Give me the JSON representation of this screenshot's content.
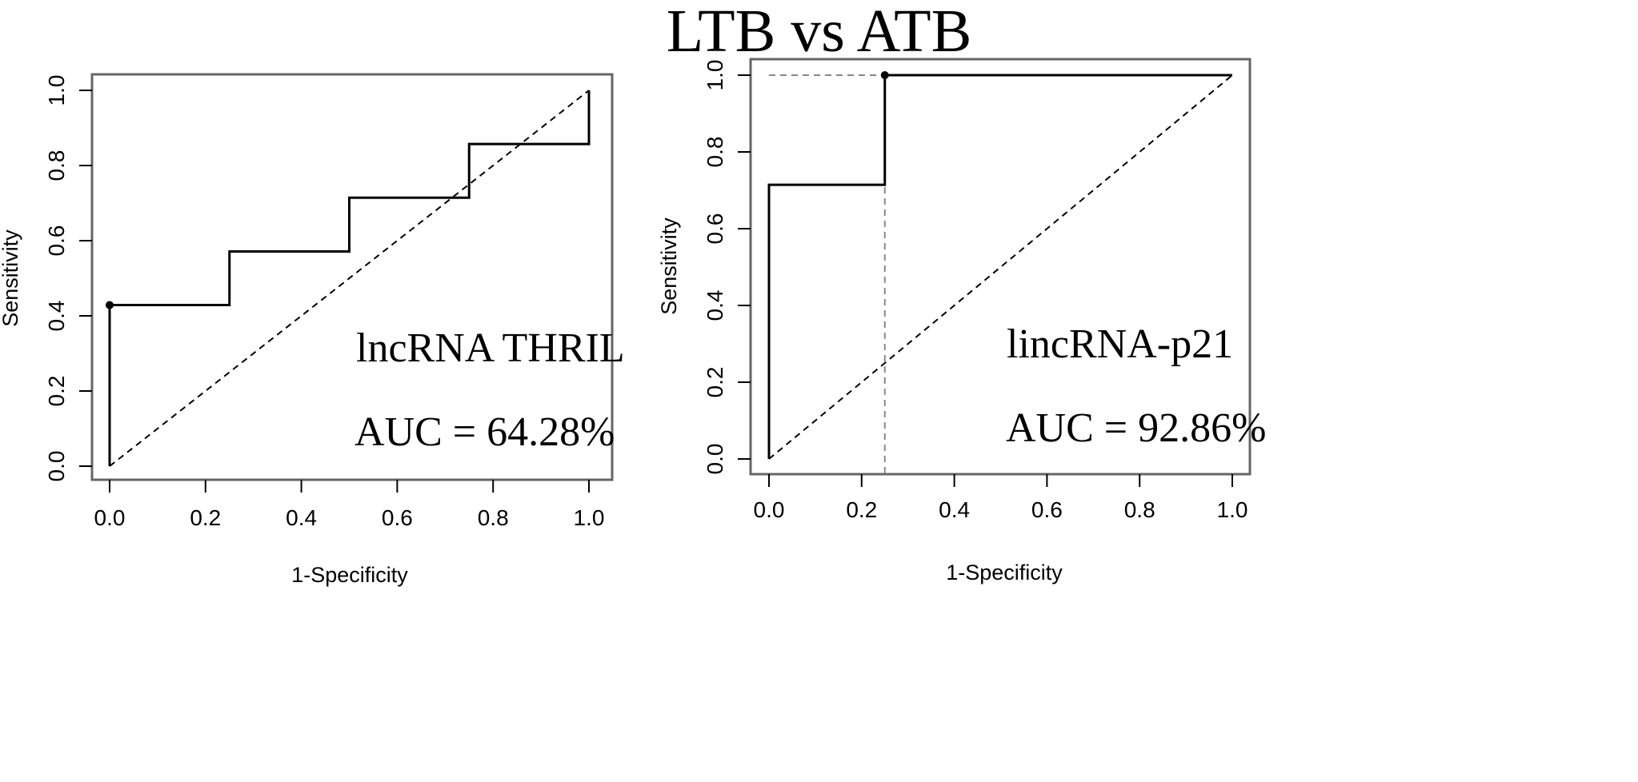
{
  "title": "LTB vs ATB",
  "chart_data": [
    {
      "type": "line",
      "name": "lncRNA THRIL panel",
      "xlabel": "1-Specificity",
      "ylabel": "Sensitivity",
      "xlim": [
        0,
        1
      ],
      "ylim": [
        0,
        1
      ],
      "xticks": [
        "0.0",
        "0.2",
        "0.4",
        "0.6",
        "0.8",
        "1.0"
      ],
      "yticks": [
        "0.0",
        "0.2",
        "0.4",
        "0.6",
        "0.8",
        "1.0"
      ],
      "annotations": [
        "lncRNA THRIL",
        "AUC = 64.28%"
      ],
      "roc_curve": {
        "x": [
          0,
          0,
          0.25,
          0.25,
          0.5,
          0.5,
          0.75,
          0.75,
          1.0,
          1.0
        ],
        "y": [
          0,
          0.4286,
          0.4286,
          0.5714,
          0.5714,
          0.7143,
          0.7143,
          0.8571,
          0.8571,
          1.0
        ]
      },
      "optimal_point": {
        "x": 0,
        "y": 0.4286
      },
      "reference_line": {
        "x": [
          0,
          1
        ],
        "y": [
          0,
          1
        ]
      },
      "threshold_guides": false,
      "grid": false
    },
    {
      "type": "line",
      "name": "lincRNA-p21 panel",
      "xlabel": "1-Specificity",
      "ylabel": "Sensitivity",
      "xlim": [
        0,
        1
      ],
      "ylim": [
        0,
        1
      ],
      "xticks": [
        "0.0",
        "0.2",
        "0.4",
        "0.6",
        "0.8",
        "1.0"
      ],
      "yticks": [
        "0.0",
        "0.2",
        "0.4",
        "0.6",
        "0.8",
        "1.0"
      ],
      "annotations": [
        "lincRNA-p21",
        "AUC = 92.86%"
      ],
      "roc_curve": {
        "x": [
          0,
          0,
          0.25,
          0.25,
          1.0
        ],
        "y": [
          0,
          0.7143,
          0.7143,
          1.0,
          1.0
        ]
      },
      "optimal_point": {
        "x": 0.25,
        "y": 1.0
      },
      "reference_line": {
        "x": [
          0,
          1
        ],
        "y": [
          0,
          1
        ]
      },
      "threshold_guides": true,
      "grid": false
    }
  ]
}
